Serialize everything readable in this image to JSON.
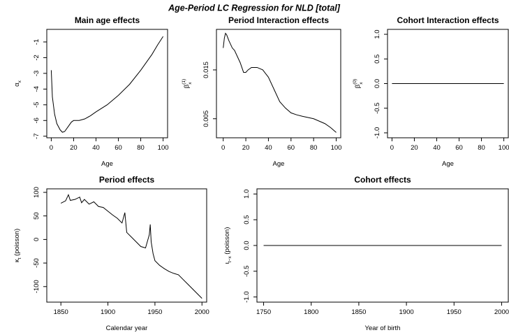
{
  "title": "Age-Period LC Regression for NLD [total]",
  "chart_data": [
    {
      "type": "line",
      "title": "Main age effects",
      "x_label": "Age",
      "y_label": {
        "text": "α",
        "sub": "x"
      },
      "x": [
        0,
        1,
        3,
        5,
        8,
        10,
        12,
        15,
        18,
        20,
        25,
        30,
        35,
        40,
        50,
        60,
        70,
        80,
        90,
        95,
        100
      ],
      "series": [
        {
          "color": "#000000",
          "values": [
            -2.8,
            -4.5,
            -5.6,
            -6.2,
            -6.6,
            -6.75,
            -6.7,
            -6.4,
            -6.1,
            -6.0,
            -6.0,
            -5.9,
            -5.7,
            -5.45,
            -5.0,
            -4.4,
            -3.7,
            -2.8,
            -1.8,
            -1.2,
            -0.65
          ]
        }
      ],
      "xlim": [
        -4,
        104
      ],
      "xticks": [
        0,
        20,
        40,
        60,
        80,
        100
      ],
      "ylim": [
        -7.1,
        -0.2
      ],
      "yticks": [
        -7,
        -6,
        -5,
        -4,
        -3,
        -2,
        -1
      ]
    },
    {
      "type": "line",
      "title": "Period Interaction effects",
      "x_label": "Age",
      "y_label": {
        "text": "β",
        "sub": "x",
        "sup": "(1)"
      },
      "x": [
        0,
        1,
        2,
        3,
        5,
        8,
        10,
        15,
        18,
        20,
        22,
        25,
        30,
        35,
        40,
        45,
        50,
        55,
        60,
        65,
        70,
        80,
        90,
        95,
        100
      ],
      "series": [
        {
          "color": "#000000",
          "values": [
            0.0195,
            0.0215,
            0.0225,
            0.0222,
            0.021,
            0.0195,
            0.019,
            0.0165,
            0.0145,
            0.0145,
            0.015,
            0.0155,
            0.0155,
            0.015,
            0.0135,
            0.011,
            0.0085,
            0.0072,
            0.0062,
            0.0058,
            0.0055,
            0.005,
            0.004,
            0.0032,
            0.0022
          ]
        }
      ],
      "xlim": [
        -6,
        104
      ],
      "xticks": [
        0,
        20,
        40,
        60,
        80,
        100
      ],
      "ylim": [
        0.0011,
        0.0233
      ],
      "yticks": [
        0.005,
        0.015
      ]
    },
    {
      "type": "line",
      "title": "Cohort Interaction effects",
      "x_label": "Age",
      "y_label": {
        "text": "β",
        "sub": "x",
        "sup": "(0)"
      },
      "x": [
        0,
        100
      ],
      "series": [
        {
          "color": "#000000",
          "values": [
            0,
            0
          ]
        }
      ],
      "xlim": [
        -4,
        104
      ],
      "xticks": [
        0,
        20,
        40,
        60,
        80,
        100
      ],
      "ylim": [
        -1.1,
        1.1
      ],
      "yticks": [
        {
          "value": -1,
          "label": "-1.0"
        },
        -0.5,
        {
          "value": 0,
          "label": "0.0"
        },
        0.5,
        {
          "value": 1,
          "label": "1.0"
        }
      ]
    },
    {
      "type": "line",
      "title": "Period effects",
      "x_label": "Calendar year",
      "y_label": {
        "text": "κ",
        "sub": "t",
        "suffix": " (poisson)"
      },
      "x": [
        1850,
        1855,
        1858,
        1860,
        1865,
        1870,
        1872,
        1875,
        1880,
        1885,
        1890,
        1895,
        1900,
        1905,
        1910,
        1915,
        1918,
        1920,
        1925,
        1930,
        1935,
        1940,
        1944,
        1945,
        1946,
        1948,
        1950,
        1955,
        1960,
        1965,
        1970,
        1975,
        1980,
        1985,
        1990,
        1995,
        2000
      ],
      "series": [
        {
          "color": "#000000",
          "values": [
            77,
            82,
            95,
            83,
            85,
            90,
            78,
            85,
            75,
            80,
            70,
            68,
            60,
            52,
            45,
            35,
            57,
            15,
            5,
            -5,
            -15,
            -18,
            10,
            32,
            -5,
            -30,
            -45,
            -55,
            -62,
            -68,
            -72,
            -75,
            -85,
            -95,
            -105,
            -115,
            -125
          ]
        }
      ],
      "xlim": [
        1835,
        2005
      ],
      "xticks": [
        1850,
        1900,
        1950,
        2000
      ],
      "ylim": [
        -133,
        107.5
      ],
      "yticks": [
        -100,
        -50,
        0,
        50,
        100
      ]
    },
    {
      "type": "line",
      "title": "Cohort effects",
      "x_label": "Year of birth",
      "y_label": {
        "text": "ι",
        "sub": "t−x",
        "suffix": " (poisson)"
      },
      "x": [
        1750,
        2000
      ],
      "series": [
        {
          "color": "#000000",
          "values": [
            0,
            0
          ]
        }
      ],
      "xlim": [
        1743,
        2007
      ],
      "xticks": [
        1750,
        1800,
        1850,
        1900,
        1950,
        2000
      ],
      "ylim": [
        -1.1,
        1.1
      ],
      "yticks": [
        {
          "value": -1,
          "label": "-1.0"
        },
        -0.5,
        {
          "value": 0,
          "label": "0.0"
        },
        0.5,
        {
          "value": 1,
          "label": "1.0"
        }
      ]
    }
  ]
}
